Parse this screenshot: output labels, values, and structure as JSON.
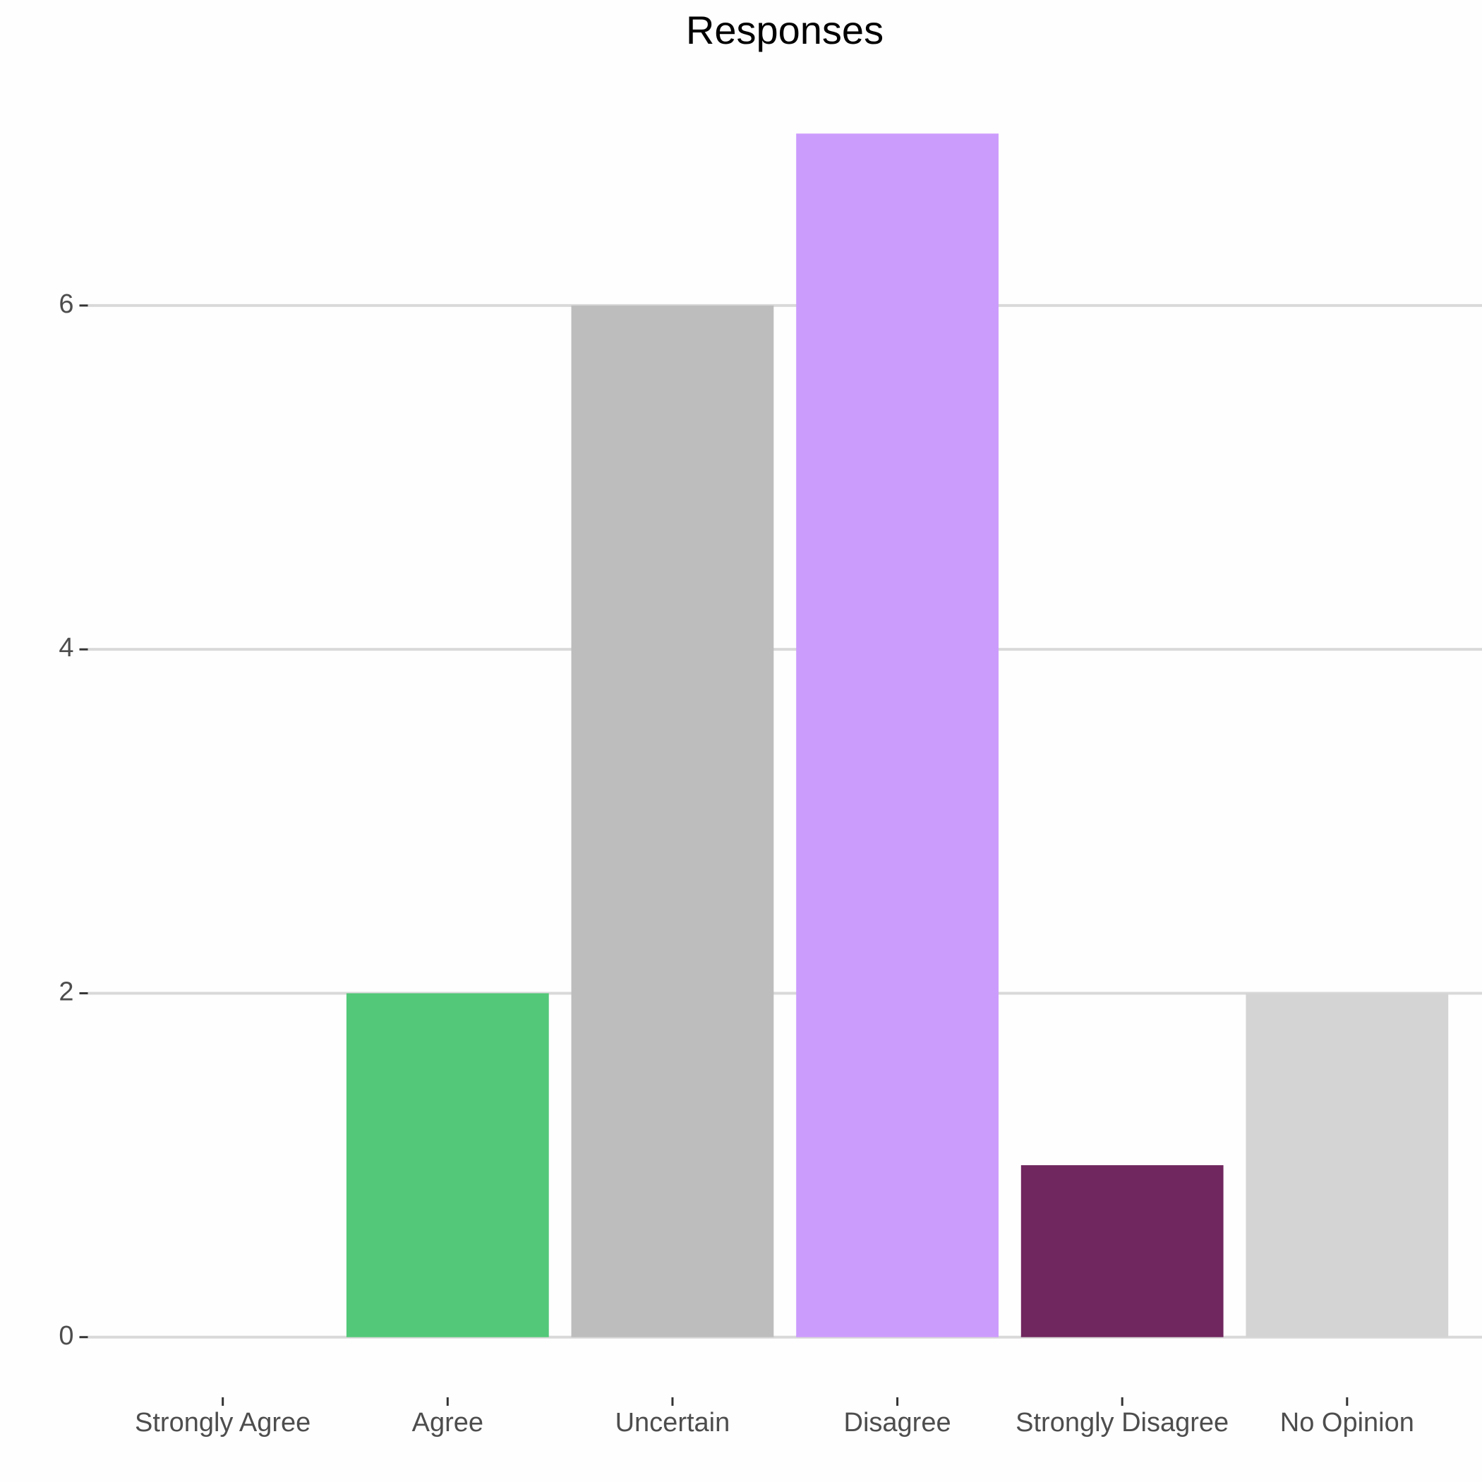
{
  "chart_data": {
    "type": "bar",
    "title": "Responses",
    "categories": [
      "Strongly Agree",
      "Agree",
      "Uncertain",
      "Disagree",
      "Strongly Disagree",
      "No Opinion"
    ],
    "values": [
      0,
      2,
      6,
      7,
      1,
      2
    ],
    "colors": [
      "#1b7a3e",
      "#52c878",
      "#bdbdbd",
      "#cc9cfd",
      "#70265e",
      "#d4d4d4"
    ],
    "ylim": [
      -0.35,
      7.35
    ],
    "yticks": [
      0,
      2,
      4,
      6
    ],
    "grid": true
  }
}
